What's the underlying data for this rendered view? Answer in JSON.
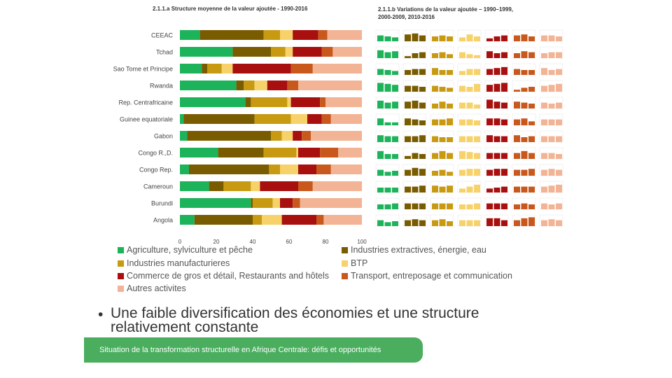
{
  "titles": {
    "left": "2.1.1.a Structure moyenne de la valeur ajoutée - 1990-2016",
    "right_line1": "2.1.1.b Variations de la valeur ajoutée – 1990–1999,",
    "right_line2": "2000-2009, 2010-2016"
  },
  "colors": [
    "#1db35a",
    "#7a5c00",
    "#c79a12",
    "#f7d26a",
    "#a80f0f",
    "#c8581c",
    "#f2b494"
  ],
  "chart_data": {
    "type": "bar",
    "orientation": "horizontal-stacked",
    "xlim": [
      0,
      100
    ],
    "x_ticks": [
      "0",
      "20",
      "40",
      "60",
      "80",
      "100"
    ],
    "categories": [
      "CEEAC",
      "Tchad",
      "Sao Tome et Principe",
      "Rwanda",
      "Rep. Centrafricaine",
      "Guinee equatoriale",
      "Gabon",
      "Congo R.,D.",
      "Congo Rep.",
      "Cameroun",
      "Burundi",
      "Angola"
    ],
    "series": [
      {
        "name": "Agriculture, sylviculture et pêche",
        "values": [
          11,
          29,
          12,
          31,
          36,
          2,
          4,
          21,
          5,
          16,
          39,
          8
        ]
      },
      {
        "name": "Industries extractives,  énergie, eau",
        "values": [
          35,
          21,
          3,
          4,
          3,
          39,
          46,
          25,
          44,
          8,
          1,
          32
        ]
      },
      {
        "name": "Industries manufacturieres",
        "values": [
          9,
          8,
          8,
          6,
          20,
          20,
          6,
          18,
          6,
          15,
          11,
          5
        ]
      },
      {
        "name": "BTP",
        "values": [
          7,
          4,
          6,
          7,
          2,
          9,
          6,
          1,
          10,
          5,
          4,
          11
        ]
      },
      {
        "name": "Commerce de gros et détail, Restaurants and hôtels",
        "values": [
          14,
          16,
          32,
          11,
          16,
          8,
          5,
          12,
          10,
          21,
          7,
          19
        ]
      },
      {
        "name": "Transport, entreposage et communication",
        "values": [
          5,
          6,
          12,
          6,
          3,
          5,
          5,
          10,
          8,
          8,
          4,
          4
        ]
      },
      {
        "name": "Autres activites",
        "values": [
          19,
          16,
          27,
          35,
          20,
          17,
          28,
          13,
          17,
          27,
          34,
          21
        ]
      }
    ],
    "variations": [
      [
        [
          0.6,
          0.5,
          0.4
        ],
        [
          0.7,
          0.8,
          0.6
        ],
        [
          0.5,
          0.6,
          0.5
        ],
        [
          0.4,
          0.7,
          0.5
        ],
        [
          0.3,
          0.5,
          0.6
        ],
        [
          0.6,
          0.7,
          0.5
        ],
        [
          0.6,
          0.6,
          0.5
        ]
      ],
      [
        [
          0.8,
          0.6,
          0.7
        ],
        [
          0.2,
          0.5,
          0.6
        ],
        [
          0.5,
          0.6,
          0.4
        ],
        [
          0.6,
          0.4,
          0.3
        ],
        [
          0.7,
          0.5,
          0.6
        ],
        [
          0.5,
          0.7,
          0.6
        ],
        [
          0.5,
          0.6,
          0.6
        ]
      ],
      [
        [
          0.6,
          0.5,
          0.4
        ],
        [
          0.5,
          0.6,
          0.6
        ],
        [
          0.7,
          0.5,
          0.5
        ],
        [
          0.4,
          0.6,
          0.6
        ],
        [
          0.6,
          0.7,
          0.8
        ],
        [
          0.6,
          0.5,
          0.5
        ],
        [
          0.7,
          0.5,
          0.6
        ]
      ],
      [
        [
          0.9,
          0.8,
          0.7
        ],
        [
          0.6,
          0.6,
          0.5
        ],
        [
          0.6,
          0.5,
          0.4
        ],
        [
          0.6,
          0.5,
          0.8
        ],
        [
          0.7,
          0.8,
          0.9
        ],
        [
          0.2,
          0.4,
          0.5
        ],
        [
          0.6,
          0.7,
          0.8
        ]
      ],
      [
        [
          0.8,
          0.6,
          0.7
        ],
        [
          0.7,
          0.8,
          0.6
        ],
        [
          0.5,
          0.7,
          0.5
        ],
        [
          0.6,
          0.6,
          0.4
        ],
        [
          0.9,
          0.7,
          0.6
        ],
        [
          0.7,
          0.6,
          0.5
        ],
        [
          0.6,
          0.5,
          0.6
        ]
      ],
      [
        [
          0.7,
          0.3,
          0.3
        ],
        [
          0.7,
          0.6,
          0.5
        ],
        [
          0.6,
          0.6,
          0.7
        ],
        [
          0.6,
          0.6,
          0.5
        ],
        [
          0.7,
          0.7,
          0.6
        ],
        [
          0.6,
          0.7,
          0.4
        ],
        [
          0.6,
          0.6,
          0.6
        ]
      ],
      [
        [
          0.7,
          0.6,
          0.6
        ],
        [
          0.6,
          0.6,
          0.7
        ],
        [
          0.6,
          0.5,
          0.5
        ],
        [
          0.6,
          0.6,
          0.6
        ],
        [
          0.7,
          0.6,
          0.6
        ],
        [
          0.7,
          0.5,
          0.6
        ],
        [
          0.6,
          0.6,
          0.6
        ]
      ],
      [
        [
          0.8,
          0.5,
          0.5
        ],
        [
          0.3,
          0.6,
          0.5
        ],
        [
          0.6,
          0.8,
          0.6
        ],
        [
          0.8,
          0.7,
          0.6
        ],
        [
          0.6,
          0.6,
          0.6
        ],
        [
          0.6,
          0.8,
          0.6
        ],
        [
          0.6,
          0.6,
          0.5
        ]
      ],
      [
        [
          0.6,
          0.4,
          0.5
        ],
        [
          0.6,
          0.8,
          0.7
        ],
        [
          0.5,
          0.6,
          0.4
        ],
        [
          0.6,
          0.7,
          0.7
        ],
        [
          0.6,
          0.7,
          0.7
        ],
        [
          0.6,
          0.6,
          0.7
        ],
        [
          0.6,
          0.7,
          0.6
        ]
      ],
      [
        [
          0.5,
          0.5,
          0.5
        ],
        [
          0.6,
          0.6,
          0.7
        ],
        [
          0.7,
          0.6,
          0.7
        ],
        [
          0.4,
          0.6,
          0.8
        ],
        [
          0.4,
          0.5,
          0.6
        ],
        [
          0.6,
          0.6,
          0.6
        ],
        [
          0.6,
          0.7,
          0.8
        ]
      ],
      [
        [
          0.5,
          0.5,
          0.6
        ],
        [
          0.6,
          0.6,
          0.6
        ],
        [
          0.6,
          0.6,
          0.6
        ],
        [
          0.5,
          0.5,
          0.6
        ],
        [
          0.6,
          0.6,
          0.6
        ],
        [
          0.5,
          0.6,
          0.5
        ],
        [
          0.6,
          0.5,
          0.6
        ]
      ],
      [
        [
          0.6,
          0.4,
          0.5
        ],
        [
          0.6,
          0.7,
          0.6
        ],
        [
          0.6,
          0.7,
          0.5
        ],
        [
          0.6,
          0.6,
          0.6
        ],
        [
          0.8,
          0.8,
          0.6
        ],
        [
          0.6,
          0.8,
          0.9
        ],
        [
          0.6,
          0.7,
          0.6
        ]
      ]
    ]
  },
  "bullet": {
    "dot": "•",
    "line1": "Une faible diversification des économies et une structure",
    "line2": "relativement constante"
  },
  "footer": {
    "text": "Situation de la transformation structurelle en Afrique Centrale:  défis et opportunités"
  }
}
